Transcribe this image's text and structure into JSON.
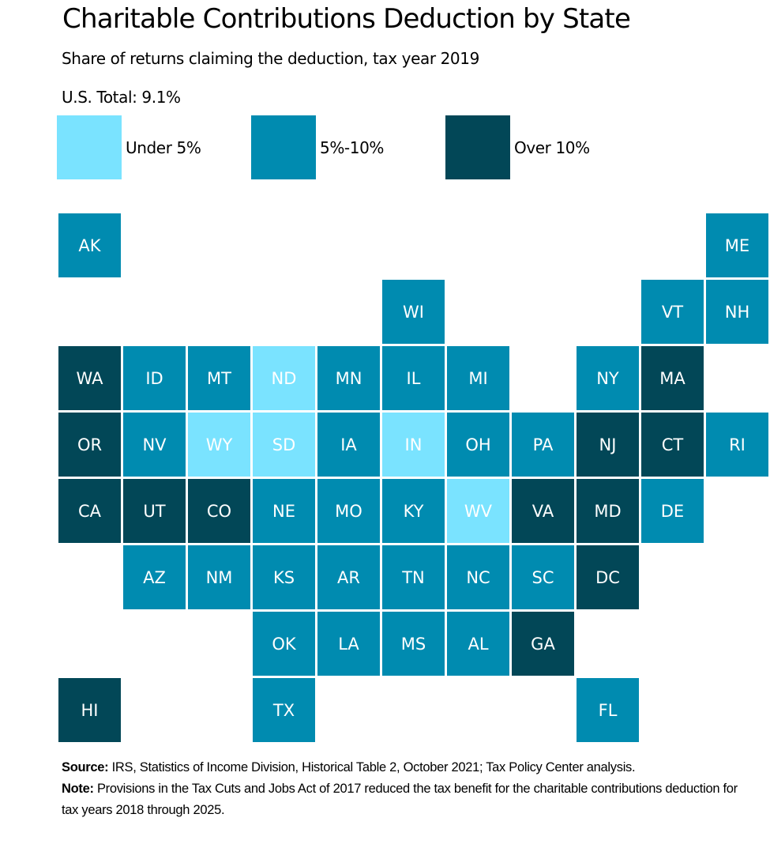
{
  "chart_data": {
    "type": "heatmap",
    "subtype": "tile-grid-map",
    "title": "Charitable Contributions Deduction by State",
    "subtitle": "Share of returns claiming the deduction, tax year 2019",
    "us_total": "U.S. Total: 9.1%",
    "legend": [
      {
        "key": "under5",
        "label": "Under 5%",
        "color": "#7AE3FF"
      },
      {
        "key": "5to10",
        "label": "5%-10%",
        "color": "#008BB0"
      },
      {
        "key": "over10",
        "label": "Over 10%",
        "color": "#024757"
      }
    ],
    "legend_placement": "top",
    "tiles": [
      {
        "state": "AK",
        "row": 0,
        "col": 0,
        "category": "5to10"
      },
      {
        "state": "ME",
        "row": 0,
        "col": 10,
        "category": "5to10"
      },
      {
        "state": "WI",
        "row": 1,
        "col": 5,
        "category": "5to10"
      },
      {
        "state": "VT",
        "row": 1,
        "col": 9,
        "category": "5to10"
      },
      {
        "state": "NH",
        "row": 1,
        "col": 10,
        "category": "5to10"
      },
      {
        "state": "WA",
        "row": 2,
        "col": 0,
        "category": "over10"
      },
      {
        "state": "ID",
        "row": 2,
        "col": 1,
        "category": "5to10"
      },
      {
        "state": "MT",
        "row": 2,
        "col": 2,
        "category": "5to10"
      },
      {
        "state": "ND",
        "row": 2,
        "col": 3,
        "category": "under5"
      },
      {
        "state": "MN",
        "row": 2,
        "col": 4,
        "category": "5to10"
      },
      {
        "state": "IL",
        "row": 2,
        "col": 5,
        "category": "5to10"
      },
      {
        "state": "MI",
        "row": 2,
        "col": 6,
        "category": "5to10"
      },
      {
        "state": "NY",
        "row": 2,
        "col": 8,
        "category": "5to10"
      },
      {
        "state": "MA",
        "row": 2,
        "col": 9,
        "category": "over10"
      },
      {
        "state": "OR",
        "row": 3,
        "col": 0,
        "category": "over10"
      },
      {
        "state": "NV",
        "row": 3,
        "col": 1,
        "category": "5to10"
      },
      {
        "state": "WY",
        "row": 3,
        "col": 2,
        "category": "under5"
      },
      {
        "state": "SD",
        "row": 3,
        "col": 3,
        "category": "under5"
      },
      {
        "state": "IA",
        "row": 3,
        "col": 4,
        "category": "5to10"
      },
      {
        "state": "IN",
        "row": 3,
        "col": 5,
        "category": "under5"
      },
      {
        "state": "OH",
        "row": 3,
        "col": 6,
        "category": "5to10"
      },
      {
        "state": "PA",
        "row": 3,
        "col": 7,
        "category": "5to10"
      },
      {
        "state": "NJ",
        "row": 3,
        "col": 8,
        "category": "over10"
      },
      {
        "state": "CT",
        "row": 3,
        "col": 9,
        "category": "over10"
      },
      {
        "state": "RI",
        "row": 3,
        "col": 10,
        "category": "5to10"
      },
      {
        "state": "CA",
        "row": 4,
        "col": 0,
        "category": "over10"
      },
      {
        "state": "UT",
        "row": 4,
        "col": 1,
        "category": "over10"
      },
      {
        "state": "CO",
        "row": 4,
        "col": 2,
        "category": "over10"
      },
      {
        "state": "NE",
        "row": 4,
        "col": 3,
        "category": "5to10"
      },
      {
        "state": "MO",
        "row": 4,
        "col": 4,
        "category": "5to10"
      },
      {
        "state": "KY",
        "row": 4,
        "col": 5,
        "category": "5to10"
      },
      {
        "state": "WV",
        "row": 4,
        "col": 6,
        "category": "under5"
      },
      {
        "state": "VA",
        "row": 4,
        "col": 7,
        "category": "over10"
      },
      {
        "state": "MD",
        "row": 4,
        "col": 8,
        "category": "over10"
      },
      {
        "state": "DE",
        "row": 4,
        "col": 9,
        "category": "5to10"
      },
      {
        "state": "AZ",
        "row": 5,
        "col": 1,
        "category": "5to10"
      },
      {
        "state": "NM",
        "row": 5,
        "col": 2,
        "category": "5to10"
      },
      {
        "state": "KS",
        "row": 5,
        "col": 3,
        "category": "5to10"
      },
      {
        "state": "AR",
        "row": 5,
        "col": 4,
        "category": "5to10"
      },
      {
        "state": "TN",
        "row": 5,
        "col": 5,
        "category": "5to10"
      },
      {
        "state": "NC",
        "row": 5,
        "col": 6,
        "category": "5to10"
      },
      {
        "state": "SC",
        "row": 5,
        "col": 7,
        "category": "5to10"
      },
      {
        "state": "DC",
        "row": 5,
        "col": 8,
        "category": "over10"
      },
      {
        "state": "OK",
        "row": 6,
        "col": 3,
        "category": "5to10"
      },
      {
        "state": "LA",
        "row": 6,
        "col": 4,
        "category": "5to10"
      },
      {
        "state": "MS",
        "row": 6,
        "col": 5,
        "category": "5to10"
      },
      {
        "state": "AL",
        "row": 6,
        "col": 6,
        "category": "5to10"
      },
      {
        "state": "GA",
        "row": 6,
        "col": 7,
        "category": "over10"
      },
      {
        "state": "HI",
        "row": 7,
        "col": 0,
        "category": "over10"
      },
      {
        "state": "TX",
        "row": 7,
        "col": 3,
        "category": "5to10"
      },
      {
        "state": "FL",
        "row": 7,
        "col": 8,
        "category": "5to10"
      }
    ],
    "source_label": "Source:",
    "source_text": " IRS, Statistics of Income Division, Historical Table 2, October 2021; Tax Policy Center analysis.",
    "note_label": "Note:",
    "note_text": " Provisions in the Tax Cuts and Jobs Act of 2017 reduced the tax benefit for the charitable contributions deduction for tax years 2018 through 2025."
  }
}
